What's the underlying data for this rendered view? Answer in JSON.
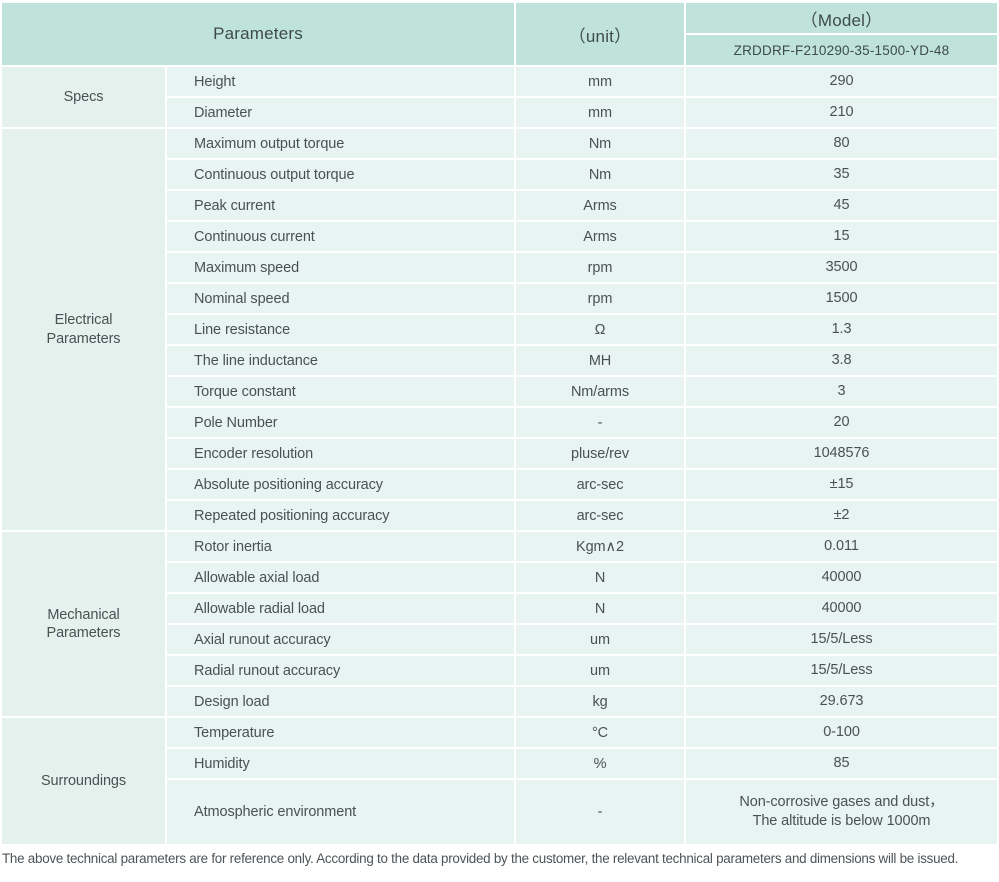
{
  "header": {
    "parameters_label": "Parameters",
    "unit_label": "（unit）",
    "model_label": "（Model）",
    "model_number": "ZRDDRF-F210290-35-1500-YD-48"
  },
  "sections": [
    {
      "name": "Specs",
      "rows": [
        {
          "param": "Height",
          "unit": "mm",
          "value": "290"
        },
        {
          "param": "Diameter",
          "unit": "mm",
          "value": "210"
        }
      ]
    },
    {
      "name": "Electrical Parameters",
      "rows": [
        {
          "param": "Maximum output torque",
          "unit": "Nm",
          "value": "80"
        },
        {
          "param": "Continuous output torque",
          "unit": "Nm",
          "value": "35"
        },
        {
          "param": "Peak current",
          "unit": "Arms",
          "value": "45"
        },
        {
          "param": "Continuous current",
          "unit": "Arms",
          "value": "15"
        },
        {
          "param": "Maximum speed",
          "unit": "rpm",
          "value": "3500"
        },
        {
          "param": "Nominal speed",
          "unit": "rpm",
          "value": "1500"
        },
        {
          "param": "Line resistance",
          "unit": "Ω",
          "value": "1.3"
        },
        {
          "param": "The line inductance",
          "unit": "MH",
          "value": "3.8"
        },
        {
          "param": "Torque constant",
          "unit": "Nm/arms",
          "value": "3"
        },
        {
          "param": "Pole Number",
          "unit": "-",
          "value": "20"
        },
        {
          "param": "Encoder resolution",
          "unit": "pluse/rev",
          "value": "1048576"
        },
        {
          "param": "Absolute positioning accuracy",
          "unit": "arc-sec",
          "value": "±15"
        },
        {
          "param": "Repeated positioning accuracy",
          "unit": "arc-sec",
          "value": "±2"
        }
      ]
    },
    {
      "name": "Mechanical Parameters",
      "rows": [
        {
          "param": "Rotor inertia",
          "unit": "Kgm∧2",
          "value": "0.011"
        },
        {
          "param": "Allowable axial load",
          "unit": "N",
          "value": "40000"
        },
        {
          "param": "Allowable radial load",
          "unit": "N",
          "value": "40000"
        },
        {
          "param": "Axial runout accuracy",
          "unit": "um",
          "value": "15/5/Less"
        },
        {
          "param": "Radial runout accuracy",
          "unit": "um",
          "value": "15/5/Less"
        },
        {
          "param": "Design load",
          "unit": "kg",
          "value": "29.673"
        }
      ]
    },
    {
      "name": "Surroundings",
      "rows": [
        {
          "param": "Temperature",
          "unit": "°C",
          "value": "0-100"
        },
        {
          "param": "Humidity",
          "unit": "%",
          "value": "85"
        },
        {
          "param": "Atmospheric environment",
          "unit": "-",
          "value": "Non-corrosive gases and dust，\nThe altitude is below 1000m",
          "tall": true
        }
      ]
    }
  ],
  "footer": {
    "note": "The above technical parameters are for reference only. According to the data provided by the customer, the relevant technical parameters and dimensions will be issued."
  },
  "colors": {
    "header_bg": "#bfe3da",
    "cell_bg": "#e8f4f1",
    "section_bg": "#e4f1ed",
    "text": "#4a5154"
  }
}
